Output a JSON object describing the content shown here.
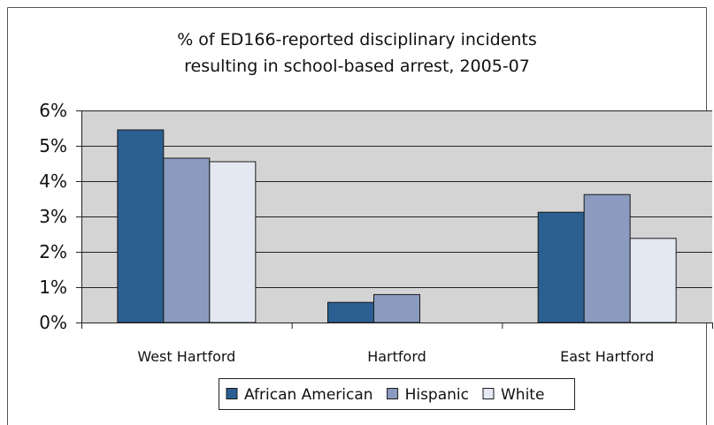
{
  "chart_data": {
    "type": "bar",
    "title_lines": [
      "% of ED166-reported disciplinary incidents",
      "resulting in school-based arrest, 2005-07"
    ],
    "categories": [
      "West Hartford",
      "Hartford",
      "East Hartford"
    ],
    "series": [
      {
        "name": "African American",
        "values": [
          5.45,
          0.57,
          3.12
        ],
        "color": "#2b5f91"
      },
      {
        "name": "Hispanic",
        "values": [
          4.65,
          0.79,
          3.62
        ],
        "color": "#8b9bc0"
      },
      {
        "name": "White",
        "values": [
          4.55,
          0,
          2.38
        ],
        "color": "#e4e8f2"
      }
    ],
    "ylim": [
      0,
      6
    ],
    "yticks": [
      0,
      1,
      2,
      3,
      4,
      5,
      6
    ],
    "ytick_labels": [
      "0%",
      "1%",
      "2%",
      "3%",
      "4%",
      "5%",
      "6%"
    ],
    "grid": true,
    "legend_position": "bottom-center",
    "plot_background": "#d4d4d4"
  }
}
